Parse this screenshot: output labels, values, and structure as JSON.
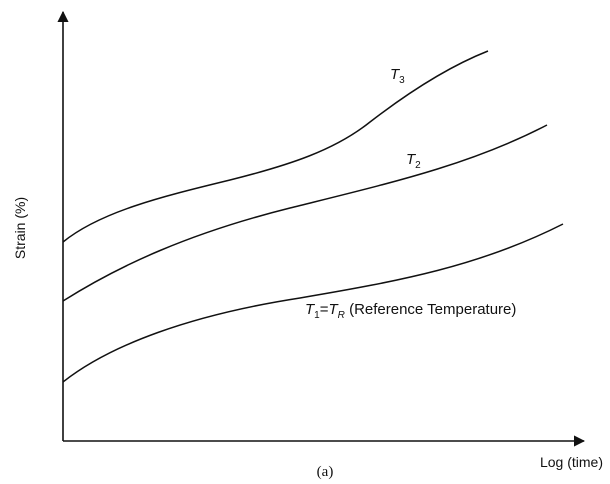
{
  "chart_data": {
    "type": "line",
    "xlabel": "Log (time)",
    "ylabel": "Strain (%)",
    "panel_label": "(a)",
    "grid": false,
    "legend": "none",
    "series": [
      {
        "id": "t1",
        "label_main": "T",
        "label_sub": "1",
        "label_eq": "=",
        "label_main2": "T",
        "label_sub2": "R",
        "label_rest": " (Reference Temperature)"
      },
      {
        "id": "t2",
        "label_main": "T",
        "label_sub": "2"
      },
      {
        "id": "t3",
        "label_main": "T",
        "label_sub": "3"
      }
    ]
  }
}
